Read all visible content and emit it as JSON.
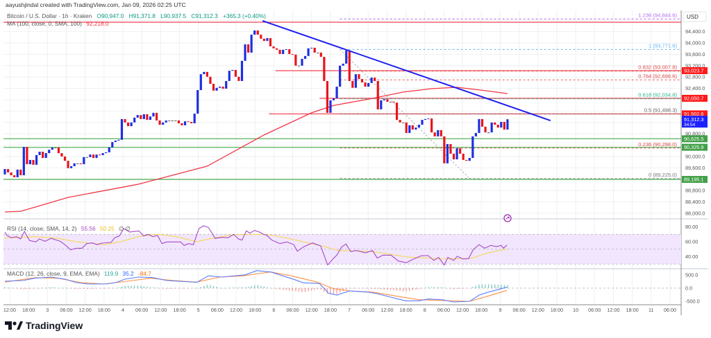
{
  "header": {
    "caption": "aayushjindal created with TradingView.com, Jan 09, 2026 02:25 UTC"
  },
  "legend": {
    "symbol": "Bitcoin / U.S. Dollar · 1h · Kraken",
    "open": "O90,947.0",
    "high": "H91,371.8",
    "low": "L90,937.5",
    "close": "C91,312.3",
    "change": "+365.3 (+0.40%)",
    "ma_label": "MA (100, close, 0, SMA, 100)",
    "ma_value": "92,218.0",
    "rsi_label": "RSI (14, close, SMA, 14, 2)",
    "rsi_value": "55.56",
    "rsi_sma_value": "50.25",
    "rsi_extra": "∅  ∅",
    "macd_label": "MACD (12, 26, close, 9, EMA, EMA)",
    "macd_hist": "119.9",
    "macd_value": "35.2",
    "macd_signal": "-84.7"
  },
  "currency": "USD",
  "current_price": {
    "label": "91,312.3",
    "countdown": "34:54",
    "color": "#1e22ff"
  },
  "brand": {
    "name": "TradingView"
  },
  "colors": {
    "up": "#1c2fe0",
    "down": "#e8141c",
    "ma": "#f23645",
    "trendline": "#1d1ef0",
    "rsi": "#a648c8",
    "rsi_sma": "#f7d44a",
    "macd": "#5a7cff",
    "signal": "#ff9043",
    "green_line": "#7cc47c",
    "red_line": "#f23645"
  },
  "chart_data": {
    "type": "candlestick",
    "title": "Bitcoin / U.S. Dollar · 1h · Kraken",
    "ylim": [
      87800,
      95000
    ],
    "y_ticks": [
      "94,400.0",
      "94,000.0",
      "93,600.0",
      "93,200.0",
      "92,800.0",
      "92,400.0",
      "90,800.0",
      "90,000.0",
      "89,600.0",
      "88,800.0",
      "88,400.0",
      "88,000.0"
    ],
    "y_tick_values": [
      94400,
      94000,
      93600,
      93200,
      92800,
      92400,
      90800,
      90000,
      89600,
      88800,
      88400,
      88000
    ],
    "x_ticks": [
      "12:00",
      "18:00",
      "3",
      "06:00",
      "12:00",
      "18:00",
      "4",
      "06:00",
      "12:00",
      "18:00",
      "5",
      "06:00",
      "12:00",
      "18:00",
      "6",
      "06:00",
      "12:00",
      "18:00",
      "7",
      "06:00",
      "12:00",
      "18:00",
      "8",
      "06:00",
      "12:00",
      "18:00",
      "9",
      "06:00",
      "12:00",
      "18:00",
      "10",
      "06:00",
      "12:00",
      "18:00",
      "11",
      "06:00"
    ],
    "first_open": 89370,
    "closes": [
      89560,
      89440,
      89340,
      89270,
      89540,
      89340,
      90340,
      89730,
      89880,
      89710,
      90050,
      90170,
      89950,
      90120,
      90240,
      90320,
      90320,
      90120,
      90000,
      89850,
      89590,
      89660,
      89760,
      89760,
      89730,
      89980,
      89980,
      90070,
      89950,
      90070,
      90050,
      90120,
      90150,
      90320,
      90510,
      90560,
      90590,
      91320,
      91200,
      91070,
      91200,
      91370,
      91460,
      91320,
      91490,
      91290,
      91410,
      91540,
      91270,
      91120,
      91200,
      91270,
      91270,
      91270,
      91270,
      91170,
      91100,
      91240,
      91220,
      91170,
      91510,
      92340,
      92900,
      92980,
      92810,
      92560,
      92320,
      92420,
      92460,
      92390,
      92660,
      93020,
      93050,
      92810,
      92660,
      93370,
      93950,
      93660,
      94290,
      94440,
      94290,
      94150,
      94070,
      94170,
      93880,
      93810,
      93760,
      93610,
      93760,
      93780,
      93610,
      93590,
      93200,
      93200,
      93440,
      93540,
      93810,
      93830,
      93660,
      93660,
      93510,
      92660,
      91540,
      91980,
      92050,
      92460,
      93200,
      93270,
      93730,
      92660,
      92420,
      92900,
      92730,
      92610,
      92460,
      92590,
      92780,
      92660,
      91660,
      91980,
      92020,
      91930,
      91930,
      91900,
      91290,
      91200,
      91200,
      90830,
      91100,
      90950,
      91020,
      91120,
      91290,
      91320,
      91340,
      90850,
      90710,
      90930,
      90710,
      89760,
      90440,
      90100,
      89900,
      90290,
      90100,
      89880,
      89850,
      89950,
      90710,
      90830,
      91320,
      91050,
      90850,
      90850,
      91200,
      91120,
      91020,
      91220,
      90950,
      91312.3
    ],
    "ma100": [
      [
        0,
        88050
      ],
      [
        5,
        88070
      ],
      [
        20,
        88560
      ],
      [
        42,
        89020
      ],
      [
        64,
        89660
      ],
      [
        82,
        90760
      ],
      [
        97,
        91540
      ],
      [
        104,
        91800
      ],
      [
        115,
        92020
      ],
      [
        126,
        92270
      ],
      [
        135,
        92390
      ],
      [
        143,
        92440
      ],
      [
        152,
        92320
      ],
      [
        159,
        92218
      ]
    ],
    "trendline": {
      "from": [
        81.5,
        94780
      ],
      "to": [
        172.6,
        91268
      ]
    },
    "horizontal_lines": [
      {
        "value": 94730,
        "color": "#f23645",
        "from": 0,
        "label": ""
      },
      {
        "value": 93023.7,
        "color": "#f23645",
        "from": 86,
        "label": "93,023.7"
      },
      {
        "value": 92050.7,
        "color": "#f23645",
        "from": 100,
        "label": "92,050.7"
      },
      {
        "value": 91502.6,
        "color": "#f23645",
        "from": 84,
        "label": "91,502.6"
      },
      {
        "value": 90625.5,
        "color": "#4caf50",
        "from": 0,
        "label": "90,625.5"
      },
      {
        "value": 90325.9,
        "color": "#4caf50",
        "from": 0,
        "label": "90,325.9"
      },
      {
        "value": 89195.1,
        "color": "#4caf50",
        "from": 0,
        "label": "89,195.1"
      }
    ],
    "fibonacci": {
      "from": 106,
      "anchor_high": [
        106,
        93771.6
      ],
      "anchor_low": [
        147,
        89225.0
      ],
      "levels": [
        {
          "ratio": "1.236",
          "value": 94844.6,
          "label": "1.236 (94,844.6)",
          "color": "#b36cf0"
        },
        {
          "ratio": "1",
          "value": 93771.6,
          "label": "1 (93,771.6)",
          "color": "#64b5f6"
        },
        {
          "ratio": "0.832",
          "value": 93007.8,
          "label": "0.832 (93,007.8)",
          "color": "#e04848"
        },
        {
          "ratio": "0.764",
          "value": 92698.6,
          "label": "0.764 (92,698.6)",
          "color": "#e04848"
        },
        {
          "ratio": "0.618",
          "value": 92034.8,
          "label": "0.618 (92,034.8)",
          "color": "#26b38a"
        },
        {
          "ratio": "0.5",
          "value": 91498.3,
          "label": "0.5 (91,498.3)",
          "color": "#666666"
        },
        {
          "ratio": "0.236",
          "value": 90298.0,
          "label": "0.236 (90,298.0)",
          "color": "#e04848"
        },
        {
          "ratio": "0",
          "value": 89225.0,
          "label": "0 (89,225.0)",
          "color": "#777777"
        }
      ]
    },
    "rsi": {
      "ylim": [
        20,
        90
      ],
      "y_ticks": [
        "80.00",
        "60.00",
        "40.00"
      ],
      "y_tick_values": [
        80,
        60,
        40
      ],
      "band": [
        30,
        70
      ],
      "values": [
        [
          0,
          73
        ],
        [
          0.7,
          68.4
        ],
        [
          2.1,
          65.3
        ],
        [
          3.6,
          66.8
        ],
        [
          5,
          63.7
        ],
        [
          6.2,
          74
        ],
        [
          7.8,
          61.6
        ],
        [
          9.8,
          59.7
        ],
        [
          10.9,
          63.7
        ],
        [
          12.7,
          60.6
        ],
        [
          14.6,
          64.6
        ],
        [
          17.5,
          60.6
        ],
        [
          19,
          56
        ],
        [
          20.8,
          49.1
        ],
        [
          22.6,
          51.3
        ],
        [
          24.4,
          51.3
        ],
        [
          25.9,
          57.5
        ],
        [
          27.7,
          58.4
        ],
        [
          29.2,
          56
        ],
        [
          30.7,
          58.1
        ],
        [
          33.6,
          59.1
        ],
        [
          34.7,
          65.3
        ],
        [
          36.2,
          67.7
        ],
        [
          37.6,
          77.7
        ],
        [
          39.5,
          73
        ],
        [
          42.4,
          74.6
        ],
        [
          43.9,
          67.7
        ],
        [
          45.3,
          69.9
        ],
        [
          46.8,
          66.8
        ],
        [
          48.3,
          68.4
        ],
        [
          49.7,
          57.5
        ],
        [
          51.2,
          59.7
        ],
        [
          55.6,
          59.7
        ],
        [
          56.7,
          55.1
        ],
        [
          58.1,
          57.5
        ],
        [
          59.6,
          56
        ],
        [
          61.4,
          77.7
        ],
        [
          62.9,
          81.4
        ],
        [
          64.4,
          79.2
        ],
        [
          66.5,
          64.6
        ],
        [
          68.7,
          65.9
        ],
        [
          70.6,
          65.3
        ],
        [
          72.4,
          69.9
        ],
        [
          73.9,
          63.7
        ],
        [
          75,
          62.1
        ],
        [
          76.4,
          74.6
        ],
        [
          77.5,
          71.4
        ],
        [
          79,
          75.2
        ],
        [
          80.5,
          73
        ],
        [
          81.9,
          69.9
        ],
        [
          82.7,
          69
        ],
        [
          84.5,
          62.1
        ],
        [
          87,
          57.5
        ],
        [
          89.2,
          59.7
        ],
        [
          91.4,
          56
        ],
        [
          92.5,
          47.3
        ],
        [
          94.4,
          52.9
        ],
        [
          97.3,
          58.4
        ],
        [
          98.8,
          56
        ],
        [
          99.9,
          54.4
        ],
        [
          102.1,
          28.7
        ],
        [
          103.9,
          37.4
        ],
        [
          105,
          42
        ],
        [
          106.5,
          52.9
        ],
        [
          107.9,
          56.9
        ],
        [
          109.4,
          46.7
        ],
        [
          111.2,
          48.2
        ],
        [
          114.1,
          45.1
        ],
        [
          116.3,
          48.2
        ],
        [
          117.8,
          38
        ],
        [
          119.6,
          42
        ],
        [
          122.2,
          42
        ],
        [
          124.4,
          34.2
        ],
        [
          127,
          31.8
        ],
        [
          128.8,
          35.8
        ],
        [
          131.7,
          41.1
        ],
        [
          133.9,
          41.4
        ],
        [
          135.7,
          34.9
        ],
        [
          137.2,
          38.9
        ],
        [
          139,
          28.7
        ],
        [
          140.1,
          38.9
        ],
        [
          142,
          34.9
        ],
        [
          143.1,
          40.5
        ],
        [
          144.9,
          36.8
        ],
        [
          146.7,
          37.4
        ],
        [
          148.2,
          49.8
        ],
        [
          150,
          56
        ],
        [
          151.8,
          51.3
        ],
        [
          153.7,
          55.1
        ],
        [
          155.5,
          53.5
        ],
        [
          157,
          55.1
        ],
        [
          157.7,
          51.3
        ],
        [
          158.8,
          55.56
        ]
      ],
      "sma": [
        [
          0,
          65
        ],
        [
          9.4,
          66.8
        ],
        [
          16.8,
          64.6
        ],
        [
          22.6,
          60
        ],
        [
          31.4,
          56
        ],
        [
          36.5,
          60
        ],
        [
          42.4,
          67
        ],
        [
          48.2,
          70
        ],
        [
          54.1,
          67
        ],
        [
          60.7,
          60
        ],
        [
          64.4,
          63.7
        ],
        [
          71.7,
          69
        ],
        [
          81.9,
          70
        ],
        [
          87,
          67
        ],
        [
          94.4,
          60
        ],
        [
          101.7,
          52.9
        ],
        [
          105.4,
          48.2
        ],
        [
          116.3,
          46.7
        ],
        [
          127.3,
          39.5
        ],
        [
          138.3,
          36.8
        ],
        [
          147.1,
          37.4
        ],
        [
          153,
          45.1
        ],
        [
          158.8,
          50.25
        ]
      ]
    },
    "macd": {
      "ylim": [
        -1050,
        1000
      ],
      "y_ticks": [
        "500.0",
        "0.0",
        "-500.0"
      ],
      "y_tick_values": [
        500,
        0,
        -500
      ],
      "macd": [
        [
          0,
          263
        ],
        [
          5.8,
          289
        ],
        [
          9.4,
          376
        ],
        [
          14.6,
          421
        ],
        [
          19,
          342
        ],
        [
          22.6,
          210
        ],
        [
          26.3,
          158
        ],
        [
          32.1,
          158
        ],
        [
          35.1,
          210
        ],
        [
          38,
          342
        ],
        [
          42.4,
          421
        ],
        [
          46.8,
          400
        ],
        [
          51.2,
          289
        ],
        [
          58.5,
          237
        ],
        [
          60.7,
          220
        ],
        [
          64.4,
          465
        ],
        [
          68.7,
          421
        ],
        [
          73.1,
          473
        ],
        [
          76.1,
          508
        ],
        [
          79.7,
          665
        ],
        [
          84.1,
          613
        ],
        [
          91.4,
          334
        ],
        [
          94.4,
          202
        ],
        [
          99.5,
          176
        ],
        [
          102.4,
          -192
        ],
        [
          105,
          -263
        ],
        [
          109,
          -105
        ],
        [
          114.8,
          -150
        ],
        [
          117.8,
          -210
        ],
        [
          126.6,
          -481
        ],
        [
          131,
          -481
        ],
        [
          133.9,
          -413
        ],
        [
          138.3,
          -440
        ],
        [
          141.9,
          -526
        ],
        [
          147.1,
          -500
        ],
        [
          150,
          -263
        ],
        [
          153,
          -150
        ],
        [
          158.8,
          35.2
        ]
      ],
      "signal": [
        [
          0,
          229
        ],
        [
          9.4,
          394
        ],
        [
          16.8,
          376
        ],
        [
          24.1,
          210
        ],
        [
          31.4,
          158
        ],
        [
          38.7,
          263
        ],
        [
          46.1,
          376
        ],
        [
          53.4,
          289
        ],
        [
          60.7,
          229
        ],
        [
          68,
          421
        ],
        [
          75.3,
          465
        ],
        [
          81.9,
          579
        ],
        [
          84.1,
          613
        ],
        [
          90.7,
          465
        ],
        [
          98.8,
          229
        ],
        [
          103.9,
          -18
        ],
        [
          109,
          -105
        ],
        [
          116.3,
          -150
        ],
        [
          123.6,
          -297
        ],
        [
          131,
          -439
        ],
        [
          138.3,
          -473
        ],
        [
          147.1,
          -500
        ],
        [
          153,
          -297
        ],
        [
          158.8,
          -84.7
        ]
      ]
    }
  }
}
